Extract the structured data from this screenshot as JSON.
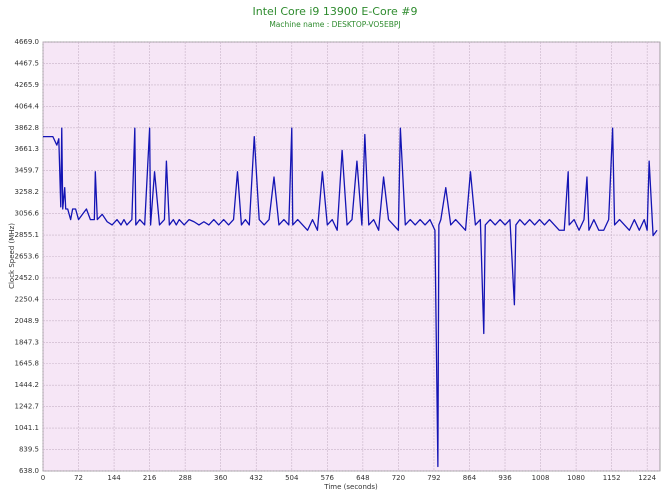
{
  "chart_data": {
    "type": "line",
    "title": "Intel Core i9 13900 E-Core #9",
    "subtitle": "Machine name : DESKTOP-VO5EBPJ",
    "x_label": "Time (seconds)",
    "y_label": "Clock Speed (MHz)",
    "xlim": [
      0,
      1250
    ],
    "xticks": [
      0,
      72,
      144,
      216,
      288,
      360,
      432,
      504,
      576,
      648,
      720,
      792,
      864,
      936,
      1008,
      1080,
      1152,
      1224
    ],
    "ylim": [
      638,
      4669
    ],
    "yticks": [
      {
        "value": 638,
        "label": "638.0"
      },
      839.5,
      1041.1,
      1242.7,
      1444.2,
      1645.8,
      1847.3,
      2048.9,
      2250.4,
      {
        "value": 2452,
        "label": "2452.0"
      },
      2653.6,
      2855.1,
      3056.6,
      3258.2,
      3459.7,
      3661.3,
      3862.8,
      4064.4,
      4265.9,
      4467.5,
      {
        "value": 4669,
        "label": "4669.0"
      }
    ],
    "grid": true,
    "color": "#1414b4",
    "background": "#f6e6f6",
    "x": [
      0,
      10,
      20,
      28,
      32,
      36,
      38,
      40,
      44,
      46,
      50,
      56,
      60,
      66,
      72,
      80,
      88,
      96,
      104,
      106,
      110,
      120,
      130,
      140,
      150,
      158,
      164,
      170,
      180,
      186,
      188,
      196,
      206,
      216,
      218,
      226,
      236,
      246,
      250,
      256,
      264,
      270,
      276,
      286,
      296,
      306,
      316,
      326,
      336,
      346,
      356,
      366,
      376,
      386,
      394,
      402,
      410,
      418,
      428,
      438,
      448,
      458,
      468,
      478,
      488,
      498,
      504,
      506,
      516,
      526,
      536,
      546,
      556,
      566,
      576,
      586,
      596,
      606,
      616,
      626,
      636,
      646,
      652,
      660,
      670,
      680,
      690,
      700,
      710,
      720,
      724,
      734,
      744,
      754,
      764,
      774,
      784,
      794,
      800,
      802,
      806,
      816,
      826,
      836,
      846,
      856,
      866,
      876,
      886,
      893,
      896,
      906,
      916,
      926,
      936,
      946,
      955,
      958,
      966,
      976,
      986,
      996,
      1006,
      1016,
      1026,
      1036,
      1046,
      1056,
      1064,
      1066,
      1076,
      1086,
      1096,
      1102,
      1106,
      1116,
      1126,
      1136,
      1146,
      1154,
      1158,
      1168,
      1178,
      1188,
      1198,
      1208,
      1218,
      1224,
      1228,
      1236,
      1244
    ],
    "values": [
      3780,
      3780,
      3780,
      3700,
      3760,
      3120,
      3860,
      3100,
      3300,
      3100,
      3100,
      3000,
      3100,
      3100,
      3000,
      3050,
      3100,
      3000,
      3000,
      3450,
      3000,
      3050,
      2980,
      2950,
      3000,
      2950,
      3000,
      2950,
      3000,
      3860,
      2950,
      3000,
      2950,
      3860,
      2950,
      3450,
      2950,
      3000,
      3550,
      2950,
      3000,
      2950,
      3000,
      2950,
      3000,
      2980,
      2950,
      2980,
      2950,
      3000,
      2950,
      3000,
      2950,
      3000,
      3450,
      2950,
      3000,
      2950,
      3780,
      3000,
      2950,
      3000,
      3400,
      2950,
      3000,
      2950,
      3860,
      2950,
      3000,
      2950,
      2900,
      3000,
      2900,
      3450,
      2950,
      3000,
      2900,
      3650,
      2950,
      3000,
      3550,
      2950,
      3800,
      2950,
      3000,
      2900,
      3400,
      3000,
      2950,
      2900,
      3860,
      2950,
      3000,
      2950,
      3000,
      2950,
      3000,
      2900,
      680,
      2950,
      3000,
      3300,
      2950,
      3000,
      2950,
      2900,
      3450,
      2950,
      3000,
      1930,
      2950,
      3000,
      2950,
      3000,
      2950,
      3000,
      2200,
      2950,
      3000,
      2950,
      3000,
      2950,
      3000,
      2950,
      3000,
      2950,
      2900,
      2900,
      3450,
      2950,
      3000,
      2900,
      3000,
      3400,
      2900,
      3000,
      2900,
      2900,
      3000,
      3860,
      2950,
      3000,
      2950,
      2900,
      3000,
      2900,
      3000,
      2900,
      3550,
      2850,
      2900
    ]
  }
}
